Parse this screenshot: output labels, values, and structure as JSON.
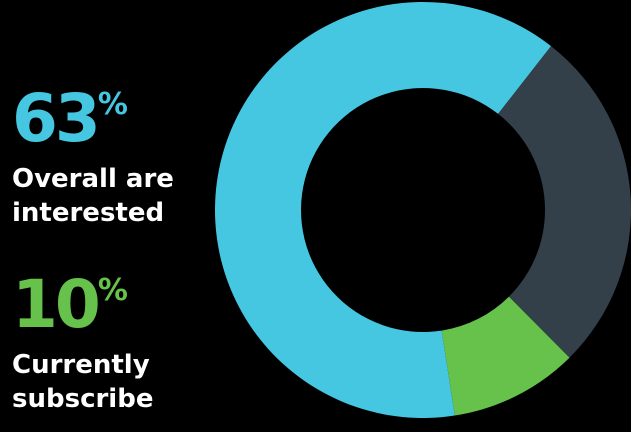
{
  "stats": [
    {
      "value": "63",
      "unit": "%",
      "label_lines": [
        "Overall are",
        "interested"
      ],
      "color": "#45c7e2"
    },
    {
      "value": "10",
      "unit": "%",
      "label_lines": [
        "Currently",
        "subscribe"
      ],
      "color": "#66c24a"
    }
  ],
  "chart_data": {
    "type": "pie",
    "variant": "donut",
    "slices": [
      {
        "value": 63,
        "color": "#45c7e2"
      },
      {
        "value": 10,
        "color": "#66c24a"
      },
      {
        "value": 27,
        "color": "#333f49"
      }
    ]
  },
  "colors": {
    "background": "#000000",
    "text": "#ffffff"
  }
}
